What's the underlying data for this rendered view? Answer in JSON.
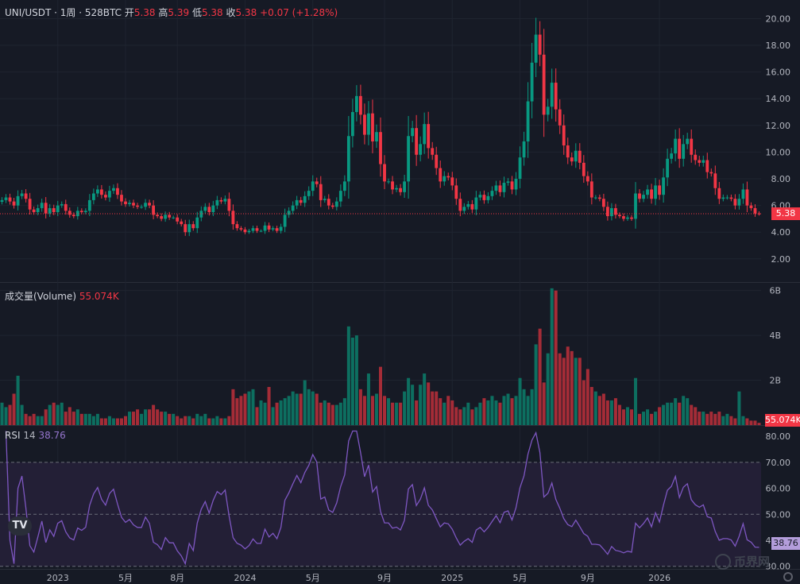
{
  "header": {
    "symbol": "UNI/USDT",
    "interval": "· 1周 · 528BTC",
    "open_label": "开",
    "open": "5.38",
    "high_label": "高",
    "high": "5.39",
    "low_label": "低",
    "low": "5.38",
    "close_label": "收",
    "close": "5.38",
    "change": "+0.07 (+1.28%)"
  },
  "volume_header": {
    "label": "成交量(Volume)",
    "value": "55.074K"
  },
  "rsi_header": {
    "label": "RSI",
    "period": "14",
    "value": "38.76"
  },
  "price_tag": "5.38",
  "volume_tag": "55.074K",
  "rsi_tag": "38.76",
  "logo": "TV",
  "watermark": "币界网",
  "colors": {
    "up": "#089981",
    "down": "#f23645",
    "rsi": "#7e57c2",
    "background": "#161a25"
  },
  "chart_data": [
    {
      "type": "candlestick",
      "title": "UNI/USDT · 1周",
      "x_ticks": [
        "2023",
        "5月",
        "8月",
        "2024",
        "5月",
        "9月",
        "2025",
        "5月",
        "9月",
        "2026"
      ],
      "y_ticks": [
        "2.00",
        "4.00",
        "6.00",
        "8.00",
        "10.00",
        "12.00",
        "14.00",
        "16.00",
        "18.00",
        "20.00"
      ],
      "ylim": [
        0.5,
        20.8
      ],
      "last_price": 5.38,
      "close": [
        6.4,
        6.6,
        6.3,
        6.0,
        6.7,
        6.9,
        6.5,
        5.7,
        5.5,
        5.8,
        6.2,
        5.4,
        5.8,
        5.5,
        6.0,
        6.1,
        5.6,
        5.3,
        5.2,
        5.6,
        5.5,
        5.6,
        6.4,
        6.9,
        7.2,
        6.8,
        6.6,
        7.1,
        7.3,
        6.8,
        6.3,
        6.1,
        6.2,
        6.0,
        5.9,
        5.9,
        6.2,
        6.0,
        5.3,
        5.2,
        5.0,
        5.3,
        5.1,
        5.1,
        4.8,
        4.6,
        4.0,
        4.6,
        4.3,
        5.1,
        5.6,
        5.9,
        5.5,
        6.0,
        6.4,
        6.3,
        6.5,
        5.6,
        4.6,
        4.3,
        4.2,
        4.0,
        4.1,
        4.3,
        4.1,
        4.1,
        4.5,
        4.2,
        4.3,
        4.1,
        4.4,
        5.3,
        5.6,
        6.0,
        6.4,
        6.2,
        6.7,
        7.1,
        7.8,
        7.6,
        6.4,
        6.5,
        6.0,
        5.9,
        6.3,
        7.1,
        7.8,
        11.2,
        13.0,
        14.2,
        12.8,
        11.3,
        12.9,
        10.8,
        11.5,
        9.1,
        7.8,
        7.8,
        7.2,
        7.3,
        7.0,
        7.8,
        11.2,
        11.8,
        9.8,
        10.6,
        12.1,
        10.3,
        9.8,
        8.8,
        7.8,
        8.2,
        8.1,
        7.5,
        6.5,
        5.6,
        5.9,
        6.1,
        5.7,
        6.6,
        6.8,
        6.4,
        6.7,
        7.1,
        7.5,
        7.0,
        7.7,
        7.8,
        7.2,
        8.0,
        9.6,
        10.8,
        13.8,
        16.7,
        18.8,
        17.3,
        12.8,
        13.4,
        15.2,
        13.2,
        12.0,
        10.5,
        9.6,
        9.3,
        10.1,
        9.2,
        8.2,
        7.8,
        6.6,
        6.6,
        6.5,
        5.9,
        5.2,
        5.8,
        5.3,
        5.2,
        5.0,
        5.1,
        5.0,
        6.9,
        6.5,
        6.8,
        7.2,
        6.5,
        7.5,
        6.8,
        8.1,
        9.5,
        9.9,
        11.0,
        9.5,
        10.6,
        11.0,
        9.8,
        9.4,
        9.2,
        9.4,
        8.5,
        8.4,
        7.3,
        6.5,
        6.6,
        6.6,
        6.5,
        6.0,
        6.5,
        7.2,
        6.0,
        5.8,
        5.4,
        5.38
      ],
      "volume": [
        1.0,
        0.8,
        0.9,
        1.4,
        2.2,
        0.9,
        0.5,
        0.4,
        0.5,
        0.4,
        0.4,
        0.7,
        0.9,
        1.0,
        0.9,
        1.0,
        0.6,
        0.8,
        0.6,
        0.7,
        0.5,
        0.5,
        0.5,
        0.4,
        0.5,
        0.3,
        0.3,
        0.4,
        0.3,
        0.3,
        0.3,
        0.4,
        0.6,
        0.6,
        0.7,
        0.5,
        0.7,
        0.7,
        0.9,
        0.7,
        0.6,
        0.6,
        0.5,
        0.5,
        0.4,
        0.3,
        0.4,
        0.4,
        0.3,
        0.5,
        0.4,
        0.5,
        0.3,
        0.3,
        0.4,
        0.3,
        0.3,
        0.4,
        1.6,
        1.2,
        1.3,
        1.4,
        1.5,
        1.6,
        0.8,
        1.1,
        1.0,
        1.7,
        0.8,
        1.0,
        1.1,
        1.2,
        1.3,
        1.5,
        1.4,
        1.4,
        2.0,
        1.6,
        1.5,
        1.4,
        1.0,
        1.1,
        1.0,
        0.9,
        0.9,
        1.0,
        1.2,
        4.4,
        3.9,
        4.0,
        1.6,
        1.3,
        2.3,
        1.3,
        1.4,
        2.6,
        1.3,
        1.2,
        1.0,
        1.0,
        1.0,
        1.5,
        2.1,
        1.8,
        1.1,
        1.8,
        2.3,
        1.9,
        1.5,
        1.5,
        1.2,
        1.0,
        1.3,
        1.1,
        0.8,
        0.7,
        0.8,
        1.0,
        0.7,
        0.8,
        1.0,
        1.2,
        1.1,
        1.3,
        1.1,
        1.0,
        1.3,
        1.4,
        1.2,
        1.3,
        2.1,
        1.6,
        1.3,
        1.6,
        3.6,
        4.3,
        1.9,
        3.2,
        6.1,
        6.0,
        3.2,
        3.0,
        3.5,
        3.3,
        3.0,
        3.0,
        2.0,
        2.5,
        1.7,
        1.5,
        1.3,
        1.4,
        1.1,
        1.1,
        1.2,
        0.9,
        0.7,
        0.8,
        0.7,
        2.1,
        0.5,
        0.6,
        0.7,
        0.5,
        0.6,
        0.8,
        0.9,
        1.0,
        1.0,
        1.2,
        1.0,
        1.3,
        1.2,
        0.9,
        0.8,
        0.6,
        0.6,
        0.5,
        0.6,
        0.5,
        0.6,
        0.4,
        0.5,
        0.4,
        0.3,
        1.5,
        0.4,
        0.3,
        0.2,
        0.2,
        0.1
      ]
    },
    {
      "type": "bar",
      "title": "成交量(Volume)",
      "y_ticks": [
        "2B",
        "4B",
        "6B"
      ],
      "ylim": [
        0,
        6.2
      ]
    },
    {
      "type": "line",
      "title": "RSI 14",
      "y_ticks": [
        "30.00",
        "40.00",
        "50.00",
        "60.00",
        "70.00",
        "80.00"
      ],
      "ylim": [
        29,
        84
      ],
      "bands": [
        30,
        50,
        70
      ],
      "last_value": 38.76
    }
  ]
}
